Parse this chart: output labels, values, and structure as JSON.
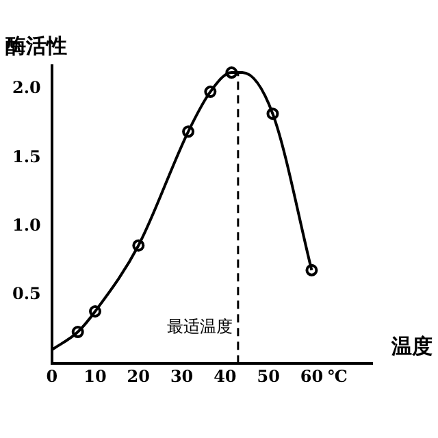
{
  "chart_data": {
    "type": "line",
    "xlabel": "温度",
    "ylabel": "酶活性",
    "series": [
      {
        "type": "line",
        "color": "#000000",
        "marker": "none",
        "x": [
          0,
          6,
          10,
          20,
          31.5,
          36.6,
          41.5,
          44,
          51,
          60
        ],
        "values": [
          0.1,
          0.23,
          0.38,
          0.86,
          1.69,
          1.98,
          2.12,
          2.12,
          1.82,
          0.68
        ]
      },
      {
        "type": "scatter",
        "color": "#000000",
        "marker": "circle",
        "x": [
          6,
          10,
          20,
          31.5,
          36.6,
          41.5,
          51,
          60
        ],
        "values": [
          0.23,
          0.38,
          0.86,
          1.69,
          1.98,
          2.12,
          1.82,
          0.68
        ]
      }
    ],
    "xlim": [
      0,
      74
    ],
    "xticks": [
      0,
      10,
      20,
      30,
      40,
      50,
      60,
      {
        "value": 66,
        "label": "℃"
      }
    ],
    "ylim": [
      0,
      2.17
    ],
    "yticks": [
      0.5,
      {
        "value": 1,
        "label": "1.0"
      },
      1.5,
      {
        "value": 2,
        "label": "2.0"
      }
    ],
    "ref_lines": [
      {
        "axis": "x",
        "value": 43,
        "label": "最适温度",
        "line_style": "dashed"
      }
    ],
    "grid": false,
    "legend": false
  }
}
